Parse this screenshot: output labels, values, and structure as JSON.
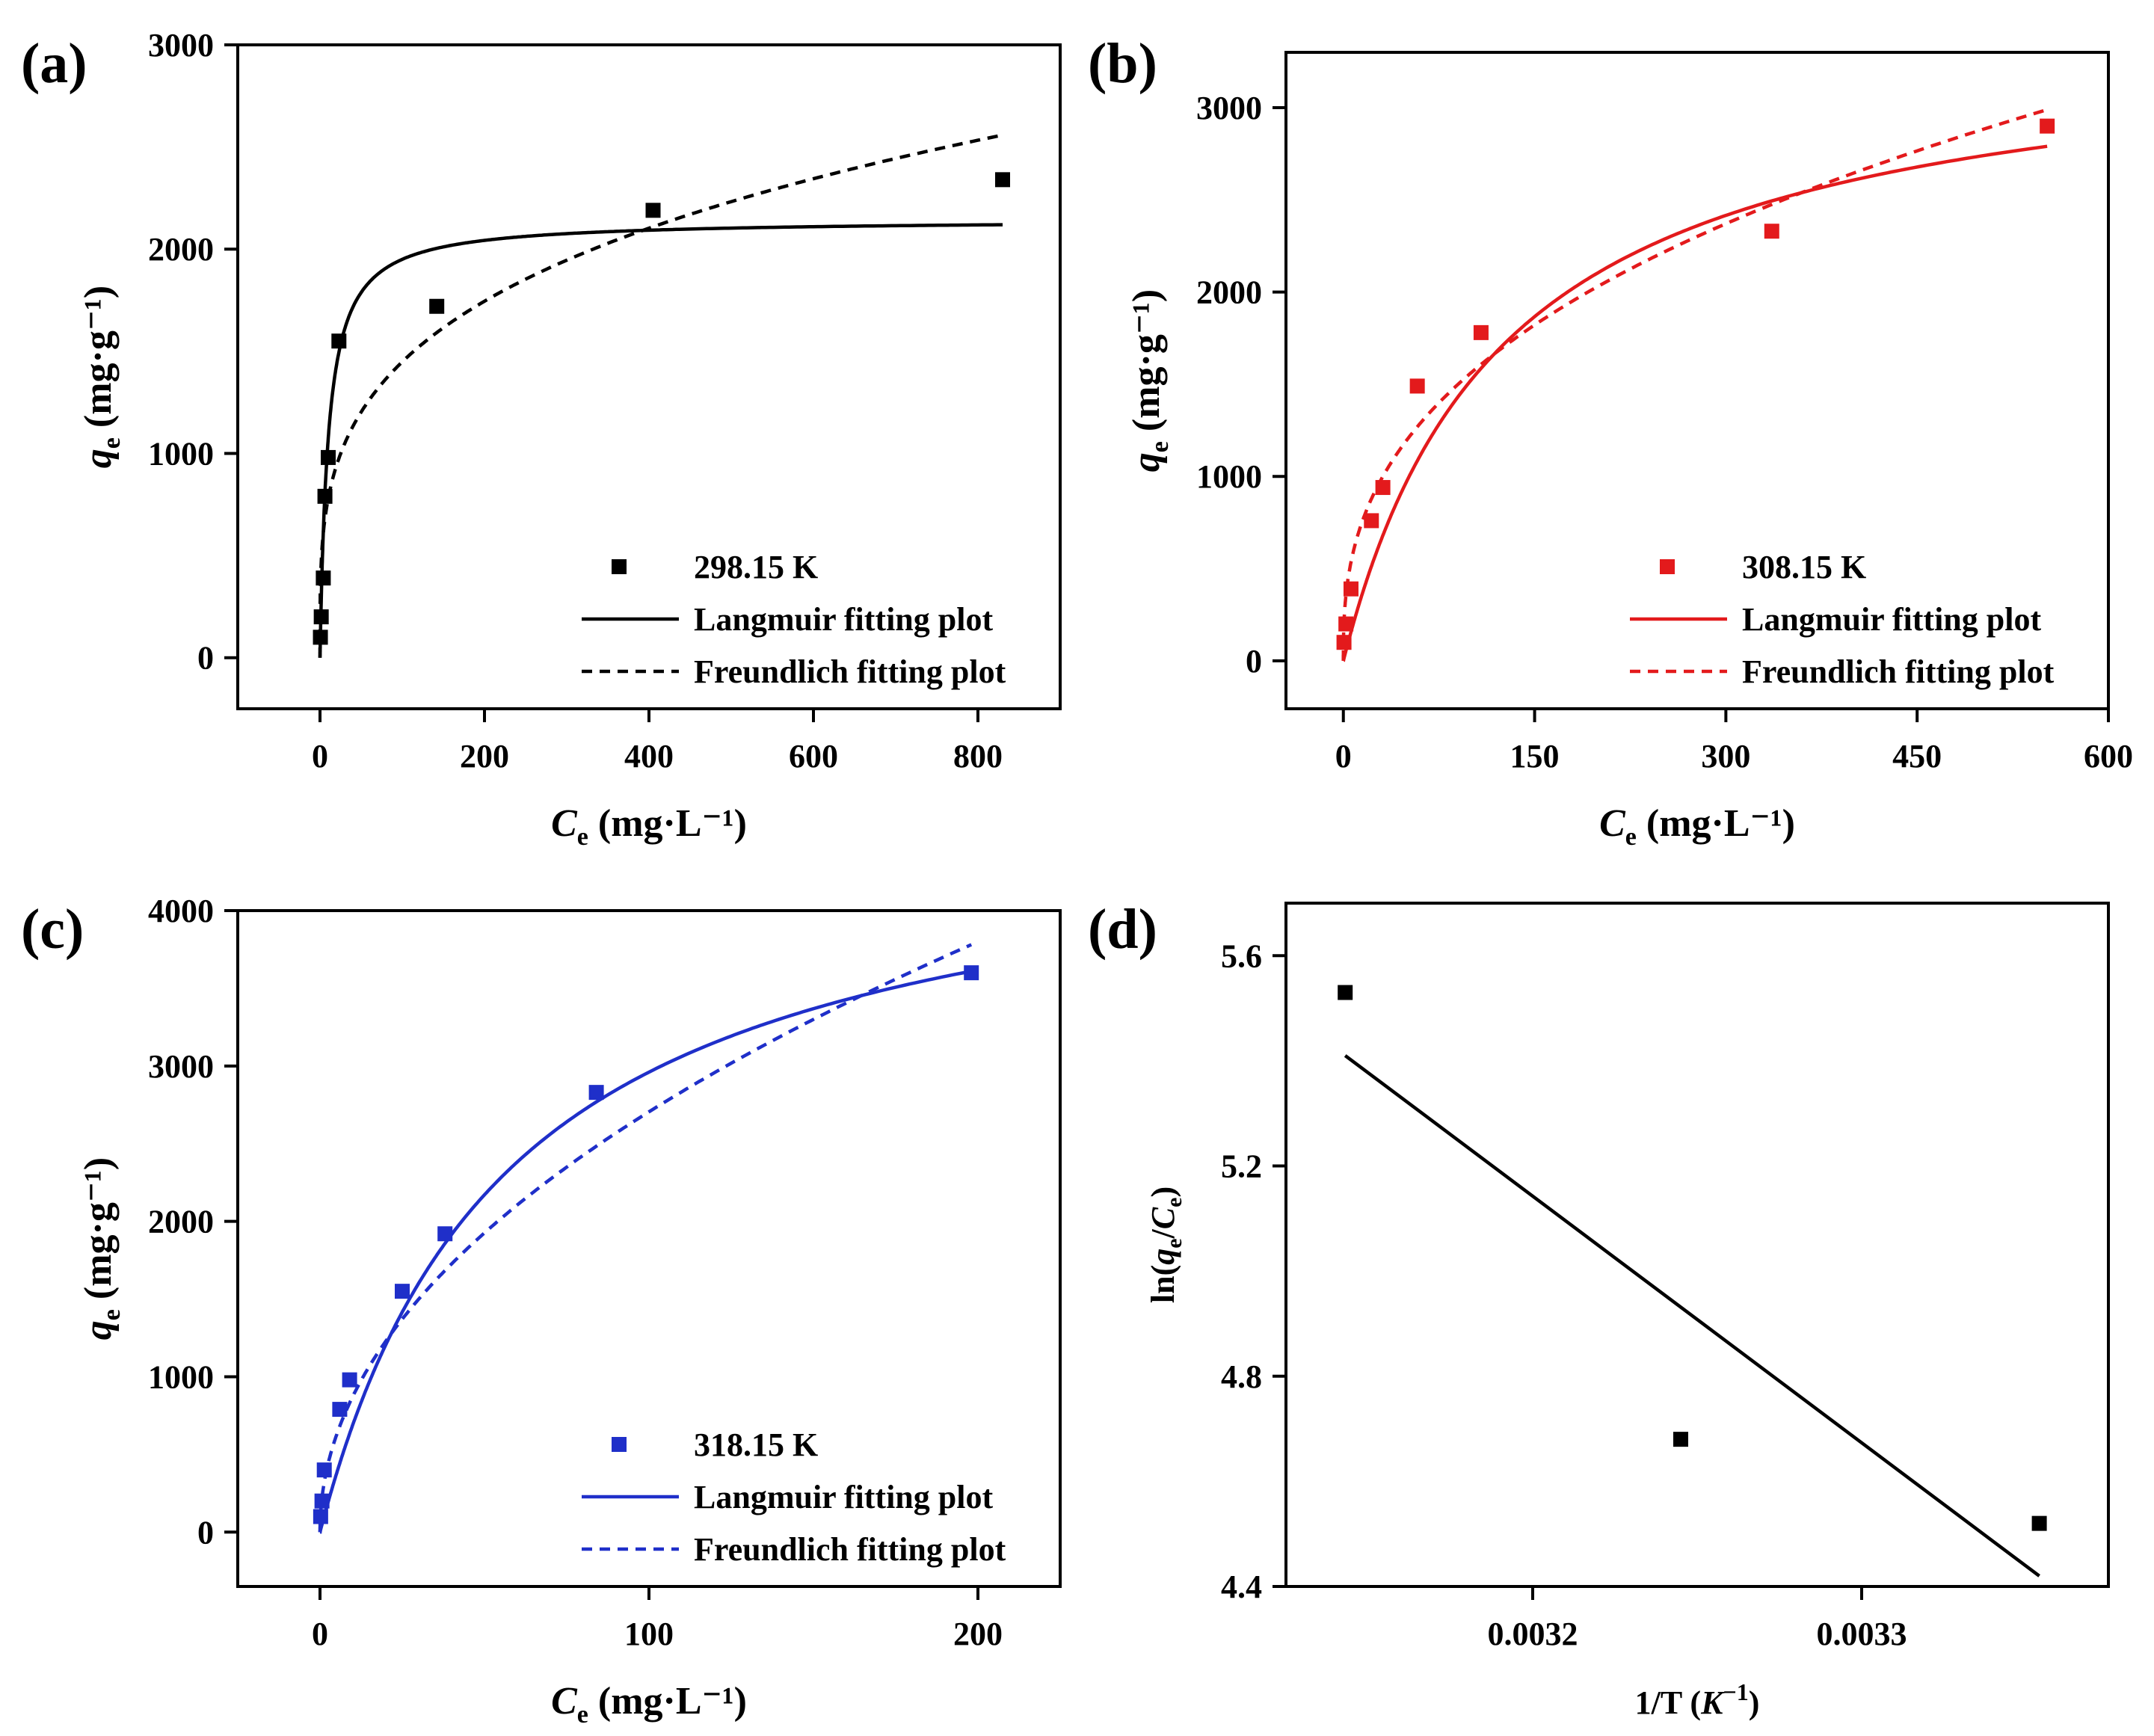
{
  "chart_data": [
    {
      "panel_label": "(a)",
      "type": "scatter",
      "color": "#000000",
      "xlabel": "C",
      "xlabel_sub": "e",
      "xlabel_unit": " (mg·L⁻¹)",
      "ylabel": "q",
      "ylabel_sub": "e",
      "ylabel_unit": " (mg·g⁻¹)",
      "xlim": [
        -100,
        900
      ],
      "ylim": [
        -250,
        3000
      ],
      "xticks": [
        0,
        200,
        400,
        600,
        800
      ],
      "yticks": [
        0,
        1000,
        2000,
        3000
      ],
      "legend_position": "bottom-right",
      "series": [
        {
          "name": "298.15 K",
          "kind": "points",
          "x": [
            0.5,
            1.5,
            4,
            6,
            10,
            23,
            142,
            405,
            830
          ],
          "y": [
            100,
            200,
            390,
            790,
            980,
            1550,
            1720,
            2190,
            2340
          ]
        },
        {
          "name": "Langmuir fitting plot",
          "kind": "langmuir",
          "qm": 2145,
          "K": 0.1,
          "xmax": 830
        },
        {
          "name": "Freundlich fitting plot",
          "kind": "freundlich",
          "Kf": 420,
          "n": 3.72,
          "xmax": 830
        }
      ]
    },
    {
      "panel_label": "(b)",
      "type": "scatter",
      "color": "#e31a1c",
      "xlabel": "C",
      "xlabel_sub": "e",
      "xlabel_unit": " (mg·L⁻¹)",
      "ylabel": "q",
      "ylabel_sub": "e",
      "ylabel_unit": " (mg·g⁻¹)",
      "xlim": [
        -45,
        600
      ],
      "ylim": [
        -260,
        3300
      ],
      "xticks": [
        0,
        150,
        300,
        450,
        600
      ],
      "yticks": [
        0,
        1000,
        2000,
        3000
      ],
      "legend_position": "bottom-right",
      "series": [
        {
          "name": "308.15 K",
          "kind": "points",
          "x": [
            0.5,
            2,
            6,
            22,
            31,
            58,
            108,
            336,
            552
          ],
          "y": [
            100,
            200,
            390,
            760,
            940,
            1490,
            1780,
            2330,
            2900
          ]
        },
        {
          "name": "Langmuir fitting plot",
          "kind": "langmuir",
          "qm": 3422,
          "K": 0.008,
          "xmax": 552
        },
        {
          "name": "Freundlich fitting plot",
          "kind": "freundlich",
          "Kf": 271,
          "n": 2.63,
          "xmax": 552
        }
      ]
    },
    {
      "panel_label": "(c)",
      "type": "scatter",
      "color": "#1f2fc9",
      "xlabel": "C",
      "xlabel_sub": "e",
      "xlabel_unit": " (mg·L⁻¹)",
      "ylabel": "q",
      "ylabel_sub": "e",
      "ylabel_unit": " (mg·g⁻¹)",
      "xlim": [
        -25,
        225
      ],
      "ylim": [
        -350,
        4000
      ],
      "xticks": [
        0,
        100,
        200
      ],
      "yticks": [
        0,
        1000,
        2000,
        3000,
        4000
      ],
      "legend_position": "bottom-right",
      "series": [
        {
          "name": "318.15 K",
          "kind": "points",
          "x": [
            0.2,
            0.6,
            1.3,
            6,
            9,
            25,
            38,
            84,
            198
          ],
          "y": [
            100,
            200,
            400,
            790,
            980,
            1550,
            1920,
            2830,
            3600
          ]
        },
        {
          "name": "Langmuir fitting plot",
          "kind": "langmuir",
          "qm": 4652,
          "K": 0.0175,
          "xmax": 198
        },
        {
          "name": "Freundlich fitting plot",
          "kind": "freundlich",
          "Kf": 283,
          "n": 2.04,
          "xmax": 198
        }
      ]
    },
    {
      "panel_label": "(d)",
      "type": "scatter",
      "color": "#000000",
      "xlabel": "1/T (",
      "xlabel_italic": "K",
      "xlabel_sup": "−1",
      "xlabel_close": ")",
      "ylabel_pre": "ln(",
      "ylabel_q": "q",
      "ylabel_qsub": "e",
      "ylabel_slash": "/",
      "ylabel_c": "C",
      "ylabel_csub": "e",
      "ylabel_close": ")",
      "xlim": [
        0.003125,
        0.003375
      ],
      "ylim": [
        4.4,
        5.7
      ],
      "xticks": [
        "0.0032",
        "0.0033"
      ],
      "xtick_values": [
        0.0032,
        0.0033
      ],
      "yticks": [
        "4.4",
        "4.8",
        "5.2",
        "5.6"
      ],
      "ytick_values": [
        4.4,
        4.8,
        5.2,
        5.6
      ],
      "series": [
        {
          "name": "points",
          "kind": "points",
          "x": [
            0.003143,
            0.003245,
            0.003354
          ],
          "y": [
            5.53,
            4.68,
            4.52
          ]
        },
        {
          "name": "fit",
          "kind": "line",
          "x": [
            0.003143,
            0.003354
          ],
          "y": [
            5.41,
            4.42
          ]
        }
      ]
    }
  ]
}
